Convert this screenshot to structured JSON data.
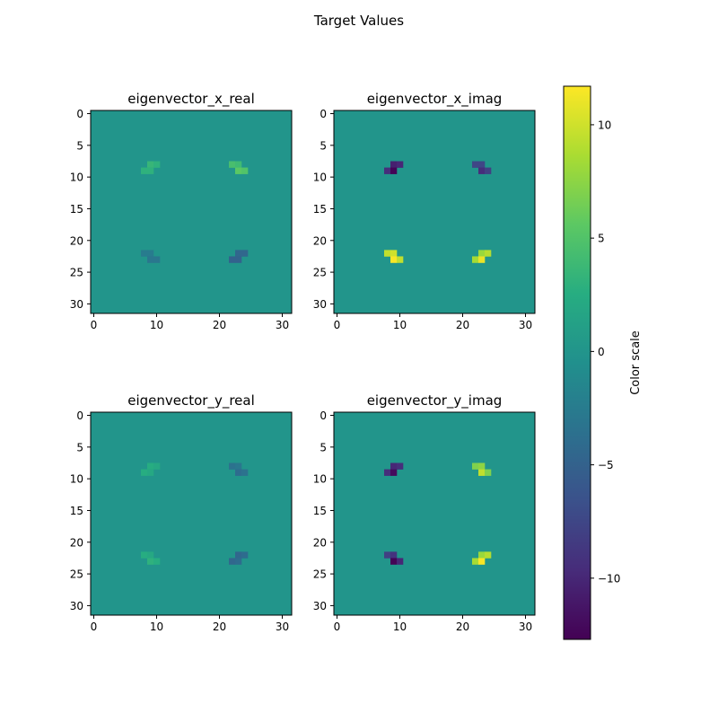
{
  "figure": {
    "title": "Target Values"
  },
  "colorbar": {
    "label": "Color scale",
    "ticks": [
      -10,
      -5,
      0,
      5,
      10
    ],
    "tick_labels": [
      "−10",
      "−5",
      "0",
      "5",
      "10"
    ]
  },
  "chart_data": [
    {
      "type": "heatmap",
      "title": "eigenvector_x_real",
      "colormap": "viridis",
      "grid_size": [
        32,
        32
      ],
      "vmin": -12.7,
      "vmax": 11.7,
      "background_value": 0,
      "x_ticks": [
        0,
        10,
        20,
        30
      ],
      "y_ticks": [
        0,
        5,
        10,
        15,
        20,
        25,
        30
      ],
      "blobs": [
        {
          "row": 8,
          "col": 9,
          "value": 3.5
        },
        {
          "row": 8,
          "col": 10,
          "value": 3.0
        },
        {
          "row": 9,
          "col": 8,
          "value": 3.0
        },
        {
          "row": 9,
          "col": 9,
          "value": 3.0
        },
        {
          "row": 8,
          "col": 22,
          "value": 4.5
        },
        {
          "row": 8,
          "col": 23,
          "value": 4.0
        },
        {
          "row": 9,
          "col": 23,
          "value": 5.5
        },
        {
          "row": 9,
          "col": 24,
          "value": 5.0
        },
        {
          "row": 22,
          "col": 8,
          "value": -2.5
        },
        {
          "row": 22,
          "col": 9,
          "value": -2.5
        },
        {
          "row": 23,
          "col": 9,
          "value": -3.0
        },
        {
          "row": 23,
          "col": 10,
          "value": -3.0
        },
        {
          "row": 22,
          "col": 23,
          "value": -4.5
        },
        {
          "row": 22,
          "col": 24,
          "value": -4.5
        },
        {
          "row": 23,
          "col": 22,
          "value": -5.0
        },
        {
          "row": 23,
          "col": 23,
          "value": -5.0
        }
      ]
    },
    {
      "type": "heatmap",
      "title": "eigenvector_x_imag",
      "colormap": "viridis",
      "grid_size": [
        32,
        32
      ],
      "vmin": -12.7,
      "vmax": 11.7,
      "background_value": 0,
      "x_ticks": [
        0,
        10,
        20,
        30
      ],
      "y_ticks": [
        0,
        5,
        10,
        15,
        20,
        25,
        30
      ],
      "blobs": [
        {
          "row": 8,
          "col": 9,
          "value": -10.5
        },
        {
          "row": 8,
          "col": 10,
          "value": -10.0
        },
        {
          "row": 9,
          "col": 8,
          "value": -9.5
        },
        {
          "row": 9,
          "col": 9,
          "value": -12.5
        },
        {
          "row": 8,
          "col": 22,
          "value": -7.5
        },
        {
          "row": 8,
          "col": 23,
          "value": -7.5
        },
        {
          "row": 9,
          "col": 23,
          "value": -9.5
        },
        {
          "row": 9,
          "col": 24,
          "value": -8.0
        },
        {
          "row": 22,
          "col": 8,
          "value": 9.5
        },
        {
          "row": 22,
          "col": 9,
          "value": 10.0
        },
        {
          "row": 23,
          "col": 9,
          "value": 11.5
        },
        {
          "row": 23,
          "col": 10,
          "value": 9.5
        },
        {
          "row": 22,
          "col": 23,
          "value": 8.0
        },
        {
          "row": 22,
          "col": 24,
          "value": 9.0
        },
        {
          "row": 23,
          "col": 22,
          "value": 8.5
        },
        {
          "row": 23,
          "col": 23,
          "value": 11.0
        }
      ]
    },
    {
      "type": "heatmap",
      "title": "eigenvector_y_real",
      "colormap": "viridis",
      "grid_size": [
        32,
        32
      ],
      "vmin": -12.7,
      "vmax": 11.7,
      "background_value": 0,
      "x_ticks": [
        0,
        10,
        20,
        30
      ],
      "y_ticks": [
        0,
        5,
        10,
        15,
        20,
        25,
        30
      ],
      "blobs": [
        {
          "row": 8,
          "col": 9,
          "value": 2.5
        },
        {
          "row": 8,
          "col": 10,
          "value": 2.0
        },
        {
          "row": 9,
          "col": 8,
          "value": 2.5
        },
        {
          "row": 9,
          "col": 9,
          "value": 2.0
        },
        {
          "row": 8,
          "col": 22,
          "value": -3.5
        },
        {
          "row": 8,
          "col": 23,
          "value": -3.0
        },
        {
          "row": 9,
          "col": 23,
          "value": -4.0
        },
        {
          "row": 9,
          "col": 24,
          "value": -3.5
        },
        {
          "row": 22,
          "col": 8,
          "value": 2.5
        },
        {
          "row": 22,
          "col": 9,
          "value": 2.0
        },
        {
          "row": 23,
          "col": 9,
          "value": 3.0
        },
        {
          "row": 23,
          "col": 10,
          "value": 2.5
        },
        {
          "row": 22,
          "col": 23,
          "value": -4.5
        },
        {
          "row": 22,
          "col": 24,
          "value": -4.0
        },
        {
          "row": 23,
          "col": 22,
          "value": -4.5
        },
        {
          "row": 23,
          "col": 23,
          "value": -4.0
        }
      ]
    },
    {
      "type": "heatmap",
      "title": "eigenvector_y_imag",
      "colormap": "viridis",
      "grid_size": [
        32,
        32
      ],
      "vmin": -12.7,
      "vmax": 11.7,
      "background_value": 0,
      "x_ticks": [
        0,
        10,
        20,
        30
      ],
      "y_ticks": [
        0,
        5,
        10,
        15,
        20,
        25,
        30
      ],
      "blobs": [
        {
          "row": 8,
          "col": 9,
          "value": -10.0
        },
        {
          "row": 8,
          "col": 10,
          "value": -9.5
        },
        {
          "row": 9,
          "col": 8,
          "value": -9.5
        },
        {
          "row": 9,
          "col": 9,
          "value": -12.0
        },
        {
          "row": 8,
          "col": 22,
          "value": 7.0
        },
        {
          "row": 8,
          "col": 23,
          "value": 7.5
        },
        {
          "row": 9,
          "col": 23,
          "value": 9.5
        },
        {
          "row": 9,
          "col": 24,
          "value": 7.0
        },
        {
          "row": 22,
          "col": 8,
          "value": -8.0
        },
        {
          "row": 22,
          "col": 9,
          "value": -9.0
        },
        {
          "row": 23,
          "col": 9,
          "value": -12.5
        },
        {
          "row": 23,
          "col": 10,
          "value": -10.0
        },
        {
          "row": 22,
          "col": 23,
          "value": 8.0
        },
        {
          "row": 22,
          "col": 24,
          "value": 9.0
        },
        {
          "row": 23,
          "col": 22,
          "value": 8.5
        },
        {
          "row": 23,
          "col": 23,
          "value": 11.5
        }
      ]
    }
  ]
}
